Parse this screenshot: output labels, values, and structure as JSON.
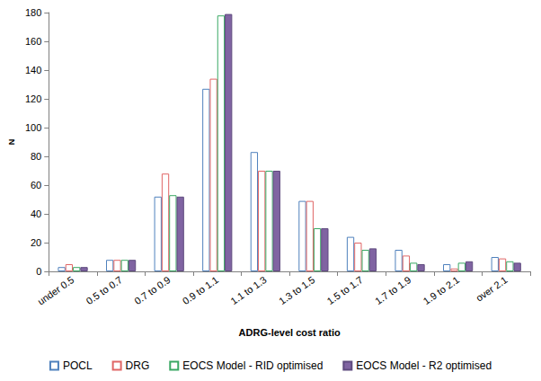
{
  "chart_data": {
    "type": "bar",
    "x_label": "ADRG-level cost ratio",
    "y_label": "N",
    "categories": [
      "under 0.5",
      "0.5 to 0.7",
      "0.7 to 0.9",
      "0.9 to 1.1",
      "1.1 to 1.3",
      "1.3 to 1.5",
      "1.5 to 1.7",
      "1.7 to 1.9",
      "1.9 to 2.1",
      "over 2.1"
    ],
    "series": [
      {
        "name": "POCL",
        "color": "#4f81bd",
        "marker": "hollow",
        "values": [
          3,
          8,
          52,
          127,
          83,
          49,
          24,
          15,
          5,
          10
        ]
      },
      {
        "name": "DRG",
        "color": "#e06666",
        "marker": "hollow",
        "values": [
          5,
          8,
          68,
          134,
          70,
          49,
          20,
          11,
          2,
          9
        ]
      },
      {
        "name": "EOCS Model - RID optimised",
        "color": "#3aa864",
        "marker": "hollow",
        "values": [
          3,
          8,
          53,
          178,
          70,
          30,
          15,
          6,
          6,
          7
        ]
      },
      {
        "name": "EOCS Model - R2 optimised",
        "color": "#8064a2",
        "marker": "filled",
        "values": [
          3,
          8,
          52,
          179,
          70,
          30,
          16,
          5,
          7,
          6
        ]
      }
    ],
    "ylim": [
      0,
      180
    ],
    "yticks": [
      0,
      20,
      40,
      60,
      80,
      100,
      120,
      140,
      160,
      180
    ],
    "grid": false,
    "legend": "bottom"
  }
}
